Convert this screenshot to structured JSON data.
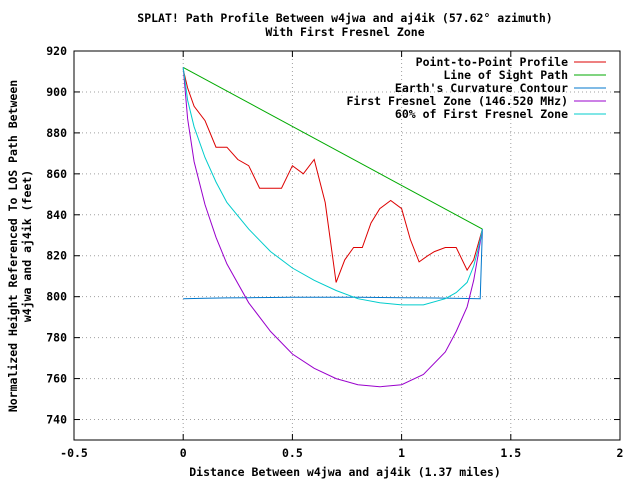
{
  "chart_data": {
    "type": "line",
    "title": "SPLAT! Path Profile Between w4jwa and aj4ik (57.62° azimuth)",
    "subtitle": "With First Fresnel Zone",
    "xlabel": "Distance Between w4jwa and aj4ik (1.37 miles)",
    "ylabel_line1": "Normalized Height Referenced To LOS Path Between",
    "ylabel_line2": "w4jwa and aj4ik (feet)",
    "xlim": [
      -0.5,
      2
    ],
    "ylim": [
      730,
      920
    ],
    "xticks": [
      -0.5,
      0,
      0.5,
      1,
      1.5,
      2
    ],
    "xtick_labels": [
      "-0.5",
      "0",
      "0.5",
      "1",
      "1.5",
      "2"
    ],
    "yticks": [
      740,
      760,
      780,
      800,
      820,
      840,
      860,
      880,
      900,
      920
    ],
    "ytick_labels": [
      "740",
      "760",
      "780",
      "800",
      "820",
      "840",
      "860",
      "880",
      "900",
      "920"
    ],
    "grid": true,
    "legend_position": "top-right",
    "series": [
      {
        "name": "Point-to-Point Profile",
        "color": "#dd0000",
        "x": [
          0,
          0.02,
          0.05,
          0.1,
          0.15,
          0.2,
          0.25,
          0.3,
          0.35,
          0.4,
          0.45,
          0.5,
          0.55,
          0.6,
          0.65,
          0.7,
          0.74,
          0.78,
          0.82,
          0.86,
          0.9,
          0.95,
          1.0,
          1.04,
          1.08,
          1.12,
          1.15,
          1.2,
          1.25,
          1.3,
          1.33,
          1.37
        ],
        "values": [
          911,
          902,
          893,
          886,
          873,
          873,
          867,
          864,
          853,
          853,
          853,
          864,
          860,
          867,
          846,
          807,
          818,
          824,
          824,
          836,
          843,
          847,
          843,
          828,
          817,
          820,
          822,
          824,
          824,
          813,
          818,
          833
        ]
      },
      {
        "name": "Line of Sight Path",
        "color": "#00aa00",
        "x": [
          0,
          1.37
        ],
        "values": [
          912,
          833
        ]
      },
      {
        "name": "Earth's Curvature Contour",
        "color": "#0077cc",
        "x": [
          0,
          0.1,
          0.2,
          0.3,
          0.4,
          0.5,
          0.6,
          0.7,
          0.8,
          0.9,
          1.0,
          1.1,
          1.2,
          1.3,
          1.36,
          1.37
        ],
        "values": [
          799,
          799.2,
          799.4,
          799.5,
          799.6,
          799.7,
          799.7,
          799.7,
          799.7,
          799.6,
          799.5,
          799.4,
          799.3,
          799.1,
          799,
          833
        ]
      },
      {
        "name": "First Fresnel Zone (146.520 MHz)",
        "color": "#9900cc",
        "x": [
          0,
          0.02,
          0.05,
          0.1,
          0.15,
          0.2,
          0.3,
          0.4,
          0.5,
          0.6,
          0.7,
          0.8,
          0.9,
          1.0,
          1.1,
          1.2,
          1.25,
          1.3,
          1.33,
          1.35,
          1.37
        ],
        "values": [
          912,
          887,
          866,
          845,
          829,
          816,
          797,
          783,
          772,
          765,
          760,
          757,
          756,
          757,
          762,
          773,
          783,
          795,
          808,
          820,
          833
        ]
      },
      {
        "name": "60% of First Fresnel Zone",
        "color": "#00cccc",
        "x": [
          0,
          0.02,
          0.05,
          0.1,
          0.15,
          0.2,
          0.3,
          0.4,
          0.5,
          0.6,
          0.7,
          0.8,
          0.9,
          1.0,
          1.1,
          1.2,
          1.25,
          1.3,
          1.33,
          1.35,
          1.37
        ],
        "values": [
          912,
          896,
          883,
          868,
          856,
          846,
          833,
          822,
          814,
          808,
          803,
          799,
          797,
          796,
          796,
          799,
          802,
          807,
          815,
          823,
          833
        ]
      }
    ]
  }
}
